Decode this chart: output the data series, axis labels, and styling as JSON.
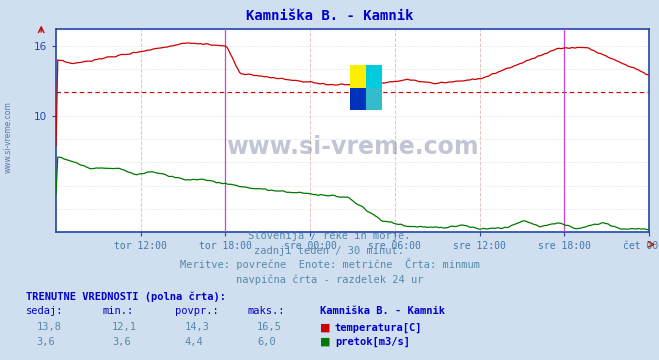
{
  "title": "Kamniška B. - Kamnik",
  "title_color": "#0000cc",
  "bg_color": "#d0dff0",
  "plot_bg_color": "#ffffff",
  "frame_color": "#2244aa",
  "grid_v_color": "#e8c0c0",
  "grid_h_color": "#e0d0d0",
  "axis_color": "#2244aa",
  "xlabel_color": "#4477aa",
  "xlabels": [
    "tor 12:00",
    "tor 18:00",
    "sre 00:00",
    "sre 06:00",
    "sre 12:00",
    "sre 18:00",
    "čet 00:00"
  ],
  "ylim": [
    0,
    17.5
  ],
  "ytick_vals": [
    10,
    16
  ],
  "temp_color": "#cc0000",
  "flow_color": "#007700",
  "hline_value": 12.1,
  "hline_color": "#cc0000",
  "vline_color": "#cc44cc",
  "watermark": "www.si-vreme.com",
  "watermark_color": "#223366",
  "side_watermark": "www.si-vreme.com",
  "side_watermark_color": "#5577aa",
  "subtitle1": "Slovenija / reke in morje.",
  "subtitle2": "zadnji teden / 30 minut.",
  "subtitle3": "Meritve: povrečne  Enote: metrične  Črta: minmum",
  "subtitle4": "navpična črta - razdelek 24 ur",
  "subtitle_color": "#5588aa",
  "label_TRENUTNE": "TRENUTNE VREDNOSTI (polna črta):",
  "label_color_bold": "#0000cc",
  "col_headers": [
    "sedaj:",
    "min.:",
    "povpr.:",
    "maks.:",
    "Kamniška B. - Kamnik"
  ],
  "row_temp": [
    "13,8",
    "12,1",
    "14,3",
    "16,5"
  ],
  "row_flow": [
    "3,6",
    "3,6",
    "4,4",
    "6,0"
  ],
  "label_temp": "temperatura[C]",
  "label_flow": "pretok[m3/s]",
  "n_points": 337,
  "vline_positions": [
    96,
    288
  ],
  "x_tick_positions": [
    48,
    96,
    144,
    192,
    240,
    288,
    336
  ]
}
